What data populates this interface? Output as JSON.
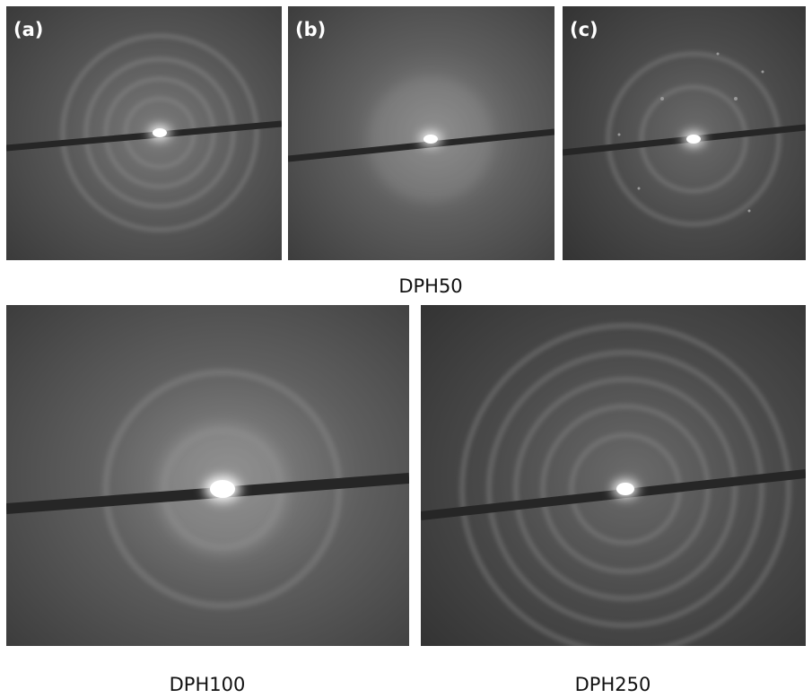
{
  "top_row": {
    "panels": [
      {
        "label": "(a)"
      },
      {
        "label": "(b)"
      },
      {
        "label": "(c)"
      }
    ],
    "caption": "DPH50"
  },
  "bottom_row": {
    "panels": [
      {
        "caption": "DPH100"
      },
      {
        "caption": "DPH250"
      }
    ]
  }
}
